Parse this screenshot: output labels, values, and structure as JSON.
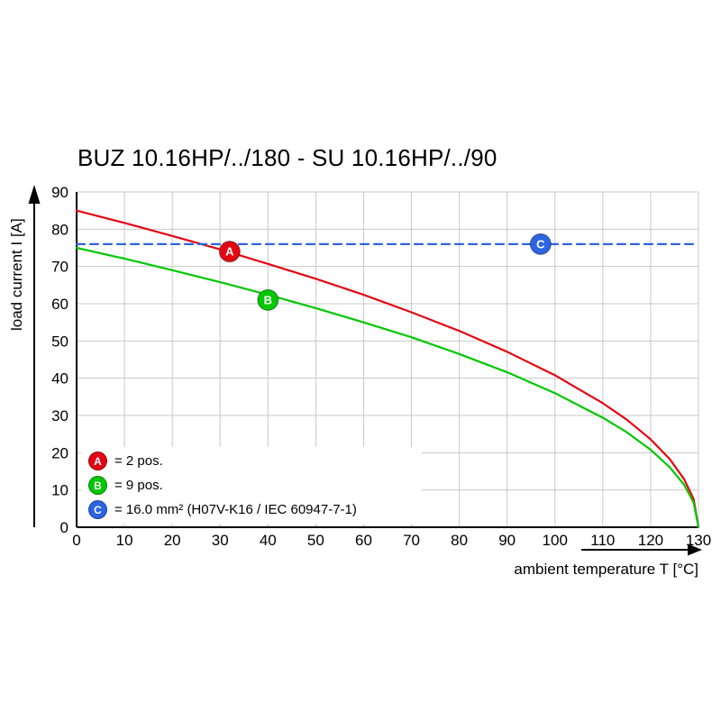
{
  "chart_data": {
    "type": "line",
    "title": "BUZ 10.16HP/../180 - SU 10.16HP/../90",
    "xlabel": "ambient temperature T [°C]",
    "ylabel": "load current I [A]",
    "xlim": [
      0,
      130
    ],
    "ylim": [
      0,
      90
    ],
    "xticks": [
      0,
      10,
      20,
      30,
      40,
      50,
      60,
      70,
      80,
      90,
      100,
      110,
      120,
      130
    ],
    "yticks": [
      0,
      10,
      20,
      30,
      40,
      50,
      60,
      70,
      80,
      90
    ],
    "grid": true,
    "legend_position": "bottom-left",
    "series": [
      {
        "name": "A",
        "label": "= 2 pos.",
        "color": "#e30613",
        "style": "solid",
        "x": [
          0,
          10,
          20,
          30,
          40,
          50,
          60,
          70,
          80,
          90,
          100,
          110,
          115,
          120,
          124,
          127,
          129,
          130
        ],
        "y": [
          85,
          81.7,
          78.2,
          74.6,
          70.7,
          66.7,
          62.4,
          57.7,
          52.7,
          47.1,
          40.8,
          33.3,
          28.9,
          23.6,
          18.3,
          12.9,
          7.5,
          0
        ],
        "marker": {
          "x": 32,
          "y": 74,
          "label": "A"
        }
      },
      {
        "name": "B",
        "label": "= 9 pos.",
        "color": "#00c800",
        "style": "solid",
        "x": [
          0,
          10,
          20,
          30,
          40,
          50,
          60,
          70,
          80,
          90,
          100,
          110,
          115,
          120,
          124,
          127,
          129,
          130
        ],
        "y": [
          75,
          72.1,
          69.0,
          65.8,
          62.4,
          58.8,
          55.0,
          51.0,
          46.5,
          41.6,
          36.0,
          29.4,
          25.5,
          20.8,
          16.1,
          11.4,
          6.6,
          0
        ],
        "marker": {
          "x": 40,
          "y": 61,
          "label": "B"
        }
      },
      {
        "name": "C",
        "label": "= 16.0 mm² (H07V-K16 / IEC 60947-7-1)",
        "color": "#2b65e0",
        "style": "dashed",
        "x": [
          0,
          130
        ],
        "y": [
          76,
          76
        ],
        "marker": {
          "x": 97,
          "y": 76,
          "label": "C"
        }
      }
    ]
  }
}
